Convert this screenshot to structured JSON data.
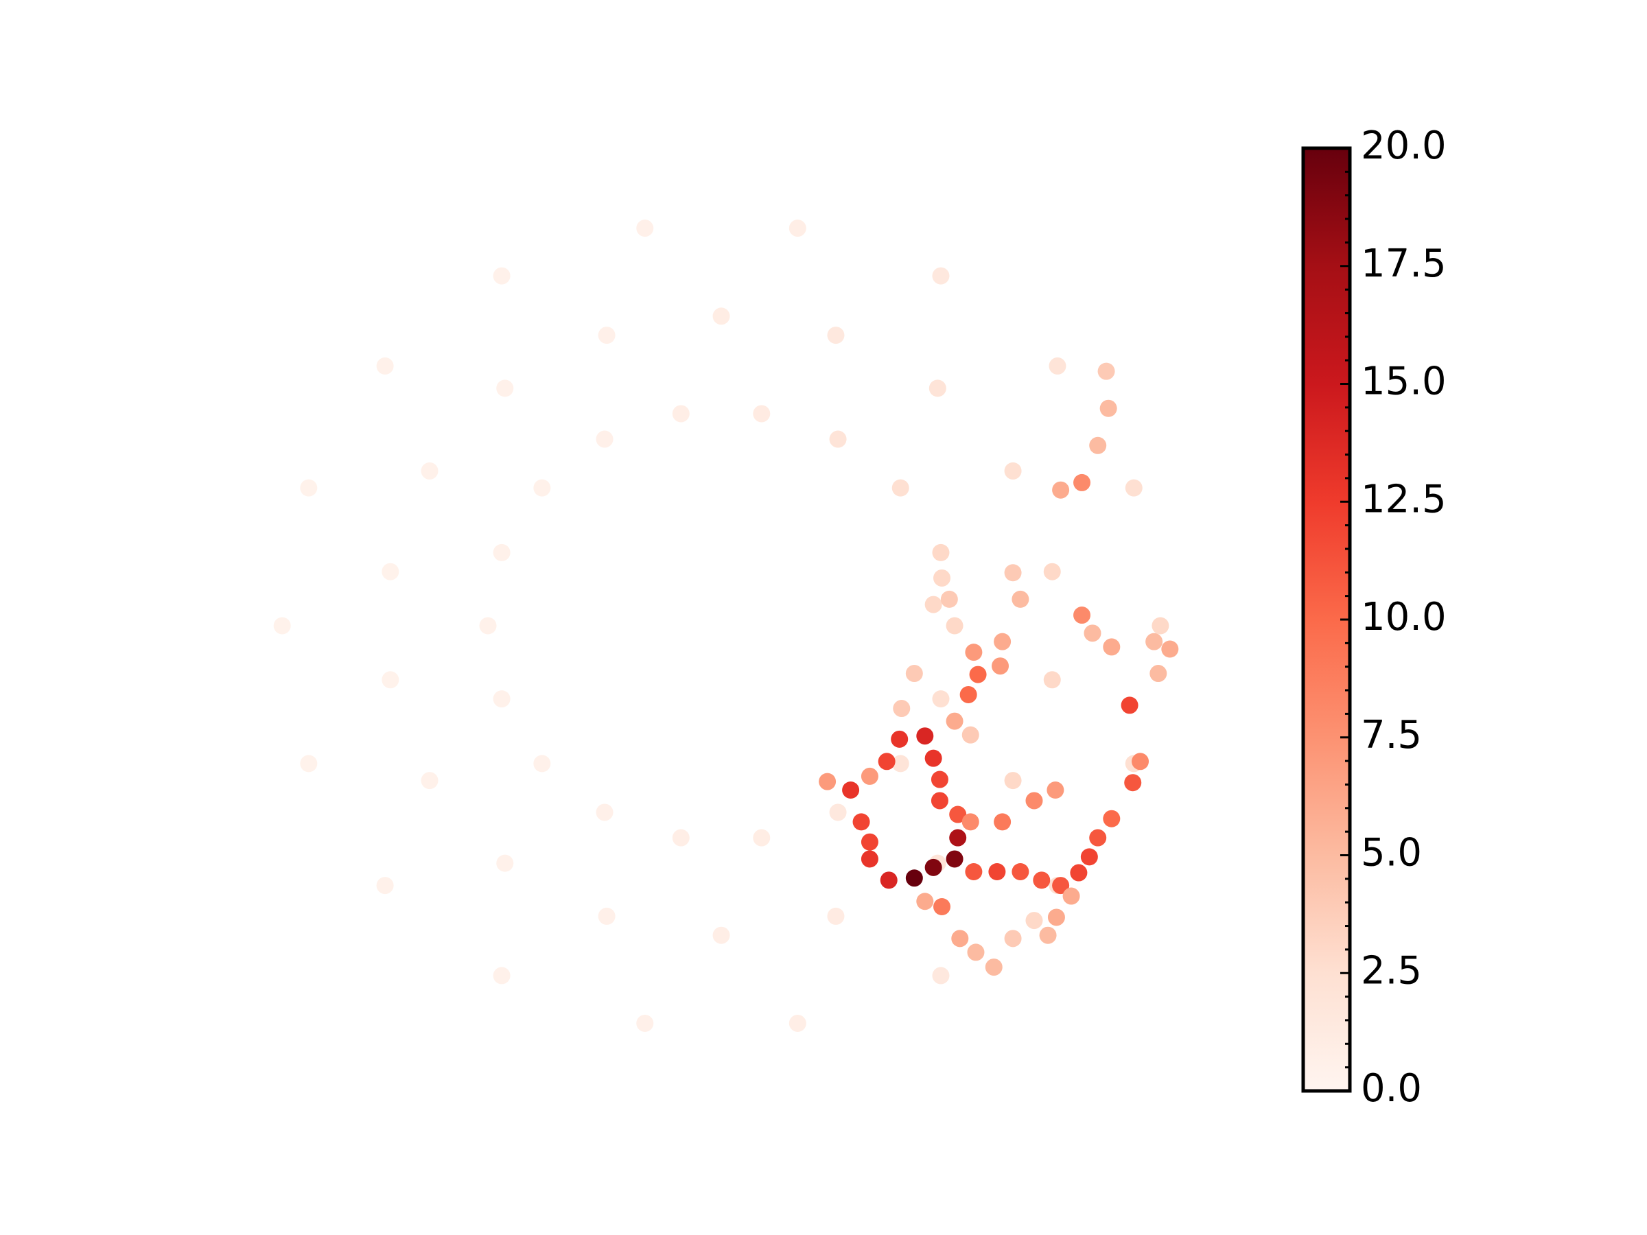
{
  "chart_data": {
    "type": "scatter",
    "xlim": [
      -440,
      460
    ],
    "ylim": [
      -420,
      420
    ],
    "x": [
      414,
      389,
      317,
      207,
      72,
      -72,
      -207,
      -317,
      -389,
      -414,
      -389,
      -317,
      -207,
      -72,
      72,
      207,
      317,
      389,
      312,
      275,
      204,
      108,
      0,
      -108,
      -204,
      -275,
      -312,
      -312,
      -275,
      -204,
      -108,
      0,
      108,
      204,
      275,
      312,
      220,
      207,
      169,
      110,
      38,
      -38,
      -110,
      -169,
      -207,
      -220,
      -207,
      -169,
      -110,
      -38,
      38,
      110,
      169,
      207,
      158,
      140,
      140,
      132,
      122,
      100,
      140,
      156,
      168,
      192,
      200,
      206,
      206,
      223,
      235,
      260,
      238,
      282,
      302,
      320,
      337,
      347,
      355,
      368,
      388,
      395,
      385,
      233,
      242,
      238,
      263,
      265,
      265,
      295,
      315,
      340,
      340,
      320,
      208,
      316,
      192,
      225,
      240,
      257,
      423,
      412,
      408,
      368,
      350,
      355,
      365,
      363,
      170,
      182,
      200,
      215,
      208,
      282,
      275,
      220,
      235,
      330,
      308,
      275,
      295,
      223,
      220,
      200,
      182
    ],
    "y": [
      0,
      130,
      245,
      330,
      375,
      375,
      330,
      245,
      130,
      0,
      -130,
      -245,
      -330,
      -375,
      -375,
      -330,
      -245,
      -130,
      51,
      146,
      224,
      274,
      292,
      274,
      224,
      146,
      51,
      -51,
      -146,
      -224,
      -274,
      -292,
      -274,
      -224,
      -146,
      -51,
      0,
      69,
      130,
      176,
      200,
      200,
      176,
      130,
      69,
      0,
      -69,
      -130,
      -176,
      -200,
      -200,
      -176,
      -130,
      -69,
      -240,
      -220,
      -204,
      -185,
      -155,
      -147,
      -142,
      -128,
      -107,
      -104,
      -125,
      -145,
      -165,
      -178,
      -185,
      -232,
      -232,
      -232,
      -240,
      -245,
      -233,
      -218,
      -200,
      -182,
      -148,
      -128,
      -75,
      -65,
      -46,
      -25,
      -38,
      -15,
      -185,
      -165,
      -155,
      10,
      135,
      128,
      -265,
      -275,
      -260,
      -295,
      -308,
      -322,
      -22,
      -45,
      -15,
      -20,
      -7,
      170,
      205,
      240,
      -78,
      -45,
      20,
      25,
      45,
      25,
      50,
      -90,
      -103,
      -255,
      -292,
      -295,
      -278,
      -200,
      -220,
      -228,
      -238
    ],
    "values": [
      3,
      2.5,
      2,
      1.5,
      0.8,
      0.6,
      0.5,
      0.5,
      0.4,
      0.4,
      0.4,
      0.5,
      0.5,
      0.6,
      0.8,
      1.5,
      2.5,
      2.5,
      3,
      2.5,
      2,
      1.5,
      1,
      0.6,
      0.5,
      0.5,
      0.4,
      0.4,
      0.5,
      0.5,
      0.6,
      0.8,
      1.2,
      2,
      3,
      3,
      3,
      3,
      2.5,
      2,
      1.2,
      0.8,
      0.6,
      0.5,
      0.5,
      0.5,
      0.5,
      0.5,
      0.6,
      0.8,
      1,
      1.5,
      2,
      2.5,
      14,
      13,
      12,
      12,
      13,
      7,
      7,
      12,
      13,
      14,
      13,
      12,
      12,
      11,
      8,
      12,
      11,
      11,
      11,
      11,
      12,
      12,
      11,
      10,
      11,
      8,
      12,
      10,
      10,
      7,
      7,
      6,
      9,
      8,
      7,
      8,
      8,
      6,
      9,
      6,
      6,
      6,
      5,
      5,
      6,
      5,
      5,
      6,
      5,
      5,
      5,
      4,
      4,
      4,
      3,
      4,
      3,
      5,
      4,
      6,
      4,
      6,
      5,
      4,
      3,
      17,
      19,
      19,
      20
    ],
    "colorbar": {
      "clim": [
        0,
        20
      ],
      "colormap": [
        "#fff5f0",
        "#fee0d2",
        "#fcbba1",
        "#fc9272",
        "#fb6a4a",
        "#ef3b2c",
        "#cb181d",
        "#a50f15",
        "#67000d"
      ],
      "ticks": [
        {
          "value": 0,
          "label": "0.0"
        },
        2.5,
        {
          "value": 5,
          "label": "5.0"
        },
        7.5,
        {
          "value": 10,
          "label": "10.0"
        },
        12.5,
        {
          "value": 15,
          "label": "15.0"
        },
        17.5,
        {
          "value": 20,
          "label": "20.0"
        }
      ],
      "minor_ticks": [
        0.5,
        1,
        1.5,
        2,
        3,
        3.5,
        4,
        4.5,
        5.5,
        6,
        6.5,
        7,
        8,
        8.5,
        9,
        9.5,
        10.5,
        11,
        11.5,
        12,
        13,
        13.5,
        14,
        14.5,
        15.5,
        16,
        16.5,
        17,
        18,
        18.5,
        19,
        19.5
      ]
    }
  }
}
